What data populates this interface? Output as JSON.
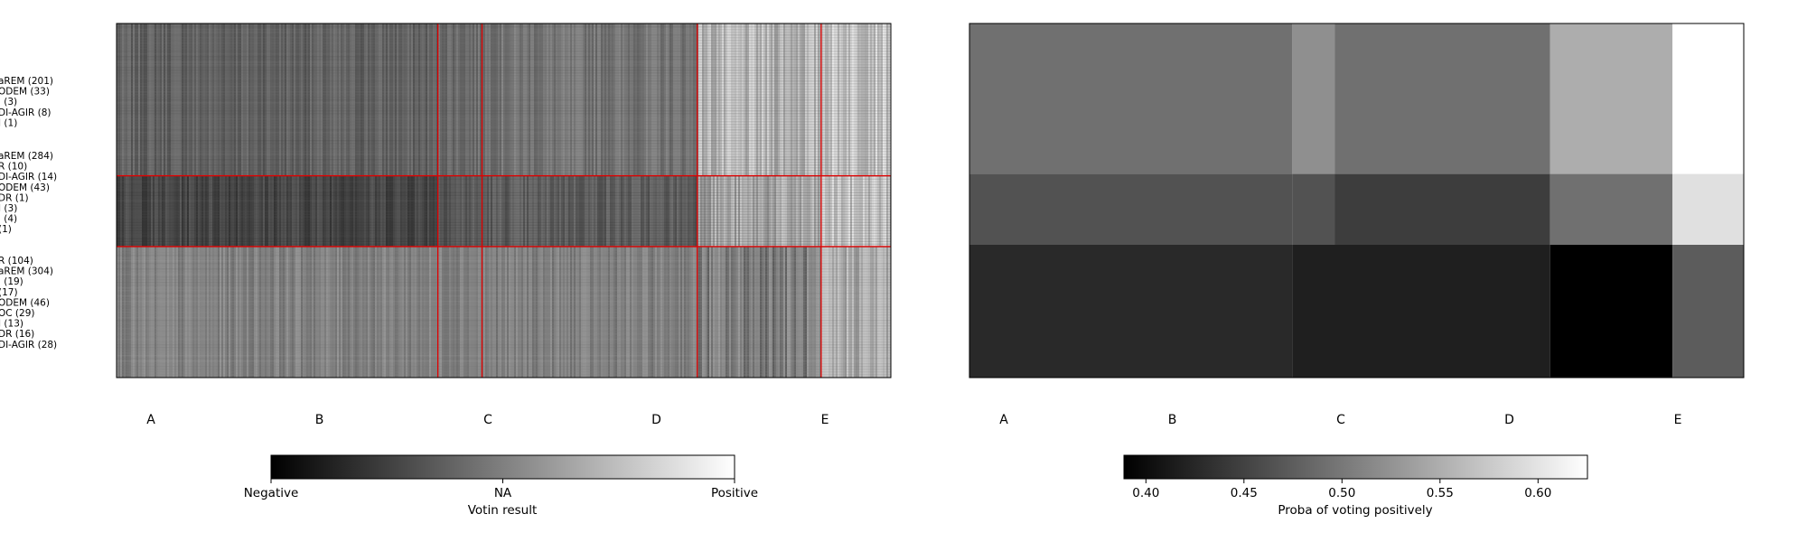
{
  "chart_data": [
    {
      "type": "heatmap",
      "row_labels": [
        "aREM (201)",
        "ODEM (33)",
        "' (3)",
        "DI-AGIR (8)",
        "I (1)",
        "aREM (284)",
        "R (10)",
        "DI-AGIR (14)",
        "ODEM (43)",
        "DR (1)",
        "I (3)",
        "' (4)",
        "(1)",
        "R (104)",
        "aREM (304)",
        "' (19)",
        "(17)",
        "ODEM (46)",
        "OC (29)",
        "I (13)",
        "DR (16)",
        "DI-AGIR (28)"
      ],
      "row_groups": [
        {
          "labels": 5,
          "share": 0.43
        },
        {
          "labels": 8,
          "share": 0.2
        },
        {
          "labels": 9,
          "share": 0.37
        }
      ],
      "column_boundaries": [
        0.415,
        0.472,
        0.75,
        0.91
      ],
      "x_tick_labels": [
        "A",
        "B",
        "C",
        "D",
        "E"
      ],
      "colorbar": {
        "colormap": "gray",
        "tick_labels": [
          "Negative",
          "NA",
          "Positive"
        ],
        "label": "Votin result"
      },
      "separator_color": "#e00000"
    },
    {
      "type": "heatmap",
      "x_tick_labels": [
        "A",
        "B",
        "C",
        "D",
        "E"
      ],
      "column_edges": [
        0,
        0.417,
        0.472,
        0.75,
        0.908,
        1.0
      ],
      "row_edges": [
        0,
        0.425,
        0.625,
        1.0
      ],
      "values": [
        [
          0.49,
          0.52,
          0.49,
          0.55,
          0.63
        ],
        [
          0.46,
          0.46,
          0.44,
          0.49,
          0.6
        ],
        [
          0.42,
          0.41,
          0.41,
          0.38,
          0.47
        ]
      ],
      "colorbar": {
        "colormap": "gray",
        "vmin": 0.38,
        "vmax": 0.63,
        "ticks": [
          0.4,
          0.45,
          0.5,
          0.55,
          0.6
        ],
        "tick_labels": [
          "0.40",
          "0.45",
          "0.50",
          "0.55",
          "0.60"
        ],
        "label": "Proba of voting positively"
      }
    }
  ]
}
